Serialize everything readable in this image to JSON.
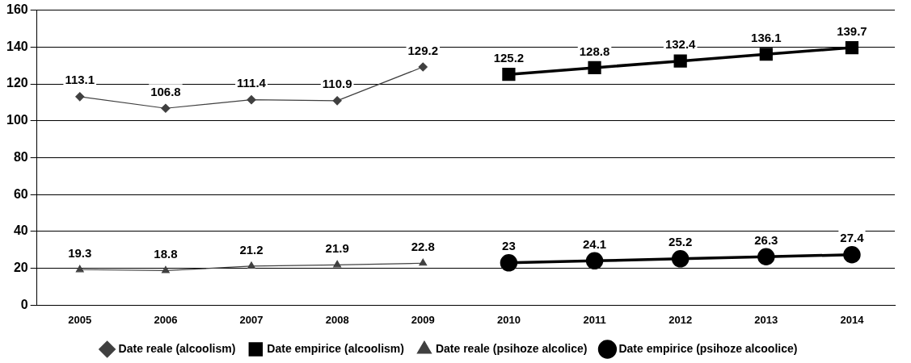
{
  "chart_data": {
    "type": "line",
    "categories": [
      "2005",
      "2006",
      "2007",
      "2008",
      "2009",
      "2010",
      "2011",
      "2012",
      "2013",
      "2014"
    ],
    "series": [
      {
        "name": "Date reale (alcoolism)",
        "color": "#404040",
        "marker": "diamond",
        "values": [
          113.1,
          106.8,
          111.4,
          110.9,
          129.2,
          null,
          null,
          null,
          null,
          null
        ]
      },
      {
        "name": "Date empirice (alcoolism)",
        "color": "#000000",
        "marker": "square",
        "values": [
          null,
          null,
          null,
          null,
          null,
          125.2,
          128.8,
          132.4,
          136.1,
          139.7
        ]
      },
      {
        "name": "Date reale (psihoze alcolice)",
        "color": "#404040",
        "marker": "triangle",
        "values": [
          19.3,
          18.8,
          21.2,
          21.9,
          22.8,
          null,
          null,
          null,
          null,
          null
        ]
      },
      {
        "name": "Date empirice (psihoze alcoolice)",
        "color": "#000000",
        "marker": "circle",
        "values": [
          null,
          null,
          null,
          null,
          null,
          23,
          24.1,
          25.2,
          26.3,
          27.4
        ]
      }
    ],
    "ylim": [
      0,
      160
    ],
    "yticks": [
      0,
      20,
      40,
      60,
      80,
      100,
      120,
      140,
      160
    ],
    "grid": "y",
    "legend": "bottom",
    "data_labels": true,
    "line_style": "solid"
  }
}
